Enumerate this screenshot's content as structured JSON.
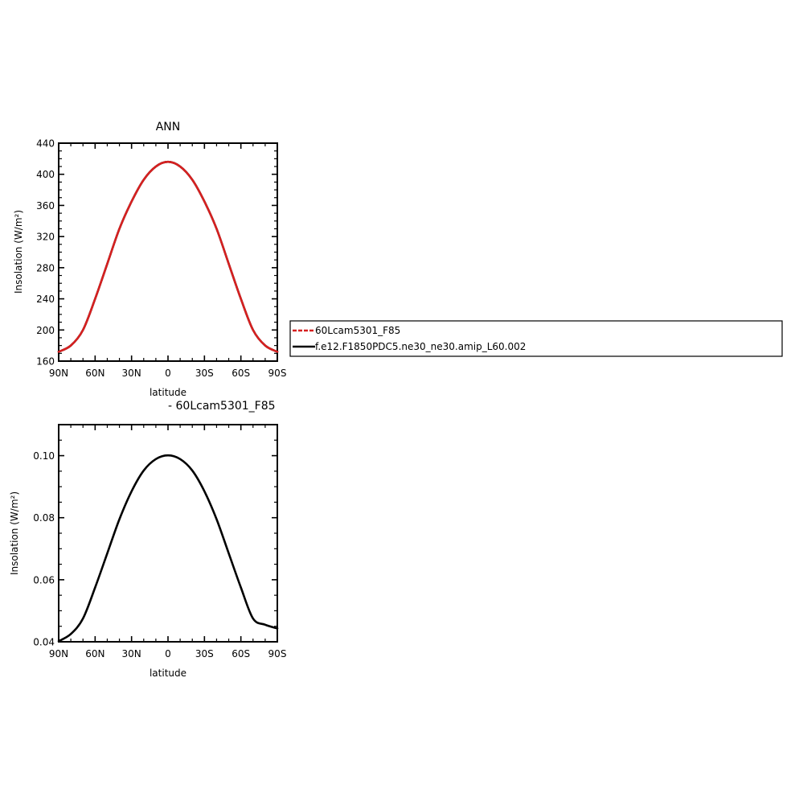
{
  "chart_data": [
    {
      "type": "line",
      "title": "ANN",
      "xlabel": "latitude",
      "ylabel": "Insolation",
      "yunit": "(W/m²)",
      "xlim": [
        90,
        -90
      ],
      "ylim": [
        160,
        440
      ],
      "x_ticks": [
        90,
        60,
        30,
        0,
        -30,
        -60,
        -90
      ],
      "x_tick_labels": [
        "90N",
        "60N",
        "30N",
        "0",
        "30S",
        "60S",
        "90S"
      ],
      "y_ticks": [
        160,
        200,
        240,
        280,
        320,
        360,
        400,
        440
      ],
      "y_tick_labels": [
        "160",
        "200",
        "240",
        "280",
        "320",
        "360",
        "400",
        "440"
      ],
      "legend_placement": "right",
      "series": [
        {
          "name": "60Lcam5301_F85",
          "color": "#d62020",
          "style": "dashed",
          "x": [
            90,
            80,
            70,
            60,
            50,
            40,
            30,
            20,
            10,
            0,
            -10,
            -20,
            -30,
            -40,
            -50,
            -60,
            -70,
            -80,
            -90
          ],
          "y": [
            172,
            180,
            200,
            240,
            285,
            330,
            365,
            393,
            410,
            416,
            410,
            393,
            365,
            330,
            285,
            240,
            200,
            180,
            172
          ]
        },
        {
          "name": "f.e12.F1850PDC5.ne30_ne30.amip_L60.002",
          "color": "#000000",
          "style": "solid",
          "x": [
            90,
            80,
            70,
            60,
            50,
            40,
            30,
            20,
            10,
            0,
            -10,
            -20,
            -30,
            -40,
            -50,
            -60,
            -70,
            -80,
            -90
          ],
          "y": [
            172,
            180,
            200,
            240,
            285,
            330,
            365,
            393,
            410,
            416,
            410,
            393,
            365,
            330,
            285,
            240,
            200,
            180,
            172
          ]
        }
      ]
    },
    {
      "type": "line",
      "title": "- 60Lcam5301_F85",
      "xlabel": "latitude",
      "ylabel": "Insolation",
      "yunit": "(W/m²)",
      "xlim": [
        90,
        -90
      ],
      "ylim": [
        0.04,
        0.11
      ],
      "x_ticks": [
        90,
        60,
        30,
        0,
        -30,
        -60,
        -90
      ],
      "x_tick_labels": [
        "90N",
        "60N",
        "30N",
        "0",
        "30S",
        "60S",
        "90S"
      ],
      "y_ticks": [
        0.04,
        0.06,
        0.08,
        0.1
      ],
      "y_tick_labels": [
        "0.04",
        "0.06",
        "0.08",
        "0.10"
      ],
      "series": [
        {
          "color": "#000000",
          "style": "solid",
          "x": [
            90,
            80,
            70,
            60,
            50,
            40,
            30,
            20,
            10,
            0,
            -10,
            -20,
            -30,
            -40,
            -50,
            -60,
            -70,
            -80,
            -90
          ],
          "y": [
            0.0402,
            0.0425,
            0.0475,
            0.0575,
            0.0685,
            0.0795,
            0.0885,
            0.0952,
            0.0989,
            0.1001,
            0.0989,
            0.0952,
            0.0885,
            0.0795,
            0.0685,
            0.0575,
            0.0475,
            0.0455,
            0.0443
          ]
        }
      ]
    }
  ]
}
